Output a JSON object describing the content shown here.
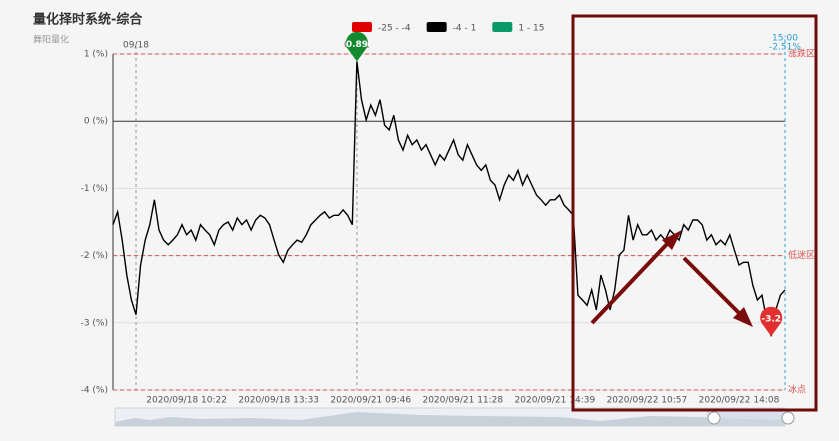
{
  "chart_data": {
    "type": "line",
    "title": "量化择时系统-综合",
    "subtitle": "舞阳量化",
    "legend": [
      {
        "label": "-25 - -4",
        "min": -25,
        "max": -4,
        "color": "#e00000"
      },
      {
        "label": "-4 - 1",
        "min": -4,
        "max": 1,
        "color": "#000000"
      },
      {
        "label": "1 - 15",
        "min": 1,
        "max": 15,
        "color": "#0a9a6a"
      }
    ],
    "categories": [
      null,
      null,
      null,
      null,
      null,
      null,
      null,
      null,
      null,
      null,
      null,
      null,
      null,
      null,
      null,
      null,
      "2020/09/18 10:22",
      null,
      null,
      null,
      null,
      null,
      null,
      null,
      null,
      null,
      null,
      null,
      null,
      null,
      null,
      null,
      null,
      null,
      null,
      null,
      "2020/09/18 13:33",
      null,
      null,
      null,
      null,
      null,
      null,
      null,
      null,
      null,
      null,
      null,
      null,
      null,
      null,
      null,
      null,
      null,
      null,
      null,
      "2020/09/21 09:46",
      null,
      null,
      null,
      null,
      null,
      null,
      null,
      null,
      null,
      null,
      null,
      null,
      null,
      null,
      null,
      null,
      null,
      null,
      null,
      "2020/09/21 11:28",
      null,
      null,
      null,
      null,
      null,
      null,
      null,
      null,
      null,
      null,
      null,
      null,
      null,
      null,
      null,
      null,
      null,
      null,
      null,
      "2020/09/21 14:39",
      null,
      null,
      null,
      null,
      null,
      null,
      null,
      null,
      null,
      null,
      null,
      null,
      null,
      null,
      null,
      null,
      null,
      null,
      null,
      "2020/09/22 10:57",
      null,
      null,
      null,
      null,
      null,
      null,
      null,
      null,
      null,
      null,
      null,
      null,
      null,
      null,
      null,
      null,
      null,
      null,
      null,
      "2020/09/22 14:08",
      null,
      null,
      null,
      null,
      null,
      null,
      null,
      null,
      null,
      null
    ],
    "series": [
      {
        "name": "综合",
        "values": [
          -1.54,
          -1.35,
          -1.77,
          -2.29,
          -2.66,
          -2.88,
          -2.14,
          -1.77,
          -1.54,
          -1.17,
          -1.62,
          -1.77,
          -1.84,
          -1.77,
          -1.69,
          -1.54,
          -1.69,
          -1.62,
          -1.77,
          -1.54,
          -1.62,
          -1.69,
          -1.84,
          -1.62,
          -1.54,
          -1.5,
          -1.62,
          -1.44,
          -1.54,
          -1.47,
          -1.62,
          -1.47,
          -1.4,
          -1.44,
          -1.54,
          -1.77,
          -1.99,
          -2.1,
          -1.92,
          -1.84,
          -1.77,
          -1.8,
          -1.69,
          -1.54,
          -1.47,
          -1.4,
          -1.35,
          -1.44,
          -1.4,
          -1.4,
          -1.32,
          -1.4,
          -1.54,
          0.89,
          0.32,
          0.02,
          0.24,
          0.09,
          0.32,
          -0.06,
          -0.13,
          0.09,
          -0.28,
          -0.43,
          -0.21,
          -0.35,
          -0.28,
          -0.43,
          -0.35,
          -0.5,
          -0.65,
          -0.5,
          -0.58,
          -0.43,
          -0.28,
          -0.5,
          -0.58,
          -0.35,
          -0.5,
          -0.65,
          -0.73,
          -0.65,
          -0.88,
          -0.95,
          -1.17,
          -0.95,
          -0.8,
          -0.88,
          -0.73,
          -0.95,
          -0.8,
          -0.95,
          -1.1,
          -1.17,
          -1.25,
          -1.17,
          -1.17,
          -1.1,
          -1.25,
          -1.32,
          -1.4,
          -2.59,
          -2.66,
          -2.74,
          -2.51,
          -2.81,
          -2.29,
          -2.51,
          -2.81,
          -2.51,
          -1.99,
          -1.92,
          -1.4,
          -1.77,
          -1.54,
          -1.69,
          -1.69,
          -1.62,
          -1.77,
          -1.69,
          -1.77,
          -1.62,
          -1.69,
          -1.77,
          -1.54,
          -1.62,
          -1.47,
          -1.47,
          -1.54,
          -1.77,
          -1.69,
          -1.84,
          -1.77,
          -1.84,
          -1.69,
          -1.92,
          -2.14,
          -2.1,
          -2.1,
          -2.44,
          -2.66,
          -2.59,
          -2.96,
          -3.2,
          -2.81,
          -2.59,
          -2.51
        ]
      }
    ],
    "ylim": [
      -4,
      1
    ],
    "yticks": [
      {
        "value": 1,
        "label": "1 (%)"
      },
      {
        "value": 0,
        "label": "0 (%)"
      },
      {
        "value": -1,
        "label": "-1 (%)"
      },
      {
        "value": -2,
        "label": "-2 (%)"
      },
      {
        "value": -3,
        "label": "-3 (%)"
      },
      {
        "value": -4,
        "label": "-4 (%)"
      }
    ],
    "grid": true,
    "mark_lines": [
      {
        "value": 1,
        "label": "涨跌区"
      },
      {
        "value": -2,
        "label": "低迷区"
      },
      {
        "value": -4,
        "label": "冰点"
      }
    ],
    "day_lines": [
      {
        "index": 5,
        "label": "09/18"
      },
      {
        "index": 53,
        "label": "09/21"
      }
    ],
    "end_label": {
      "time": "15:00",
      "text": "-2.51%"
    },
    "mark_points": [
      {
        "index": 53,
        "value": 0.89,
        "color": "#138a2e"
      },
      {
        "index": 143,
        "value": -3.2,
        "color": "#e03030"
      }
    ]
  }
}
